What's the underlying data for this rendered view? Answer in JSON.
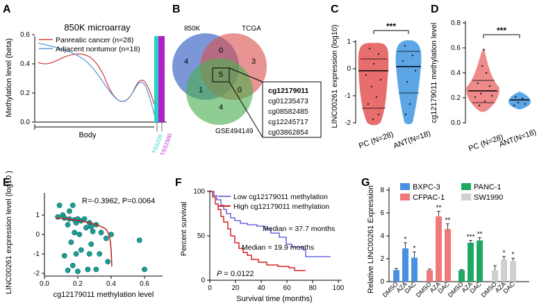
{
  "colors": {
    "red": "#d64545",
    "blue": "#5b9bd5",
    "venn_blue": "#4a6fc7",
    "venn_red": "#d9534f",
    "venn_green": "#4caf50",
    "teal": "#1a9e96",
    "tss200": "#2ad3c0",
    "tss1500": "#b020c8",
    "km_low": "#4a4ad6",
    "km_high": "#d42020",
    "g_bxpc": "#4a90e2",
    "g_cfpac": "#ee7a7a",
    "g_panc": "#1fa864",
    "g_sw": "#d0d0d0"
  },
  "panels": {
    "A": {
      "label": "A",
      "title": "850K microarray",
      "ylabel": "Methylation level (beta)",
      "xlabel": "Body",
      "legend": [
        "Panreatic cancer (n=28)",
        "Adjacent nontumor (n=18)"
      ],
      "yticks": [
        "0.0",
        "0.2",
        "0.4",
        "0.6"
      ],
      "tss200": "TSS200",
      "tss1500": "TSS1500"
    },
    "B": {
      "label": "B",
      "sets": [
        "850K",
        "TCGA",
        "GSE494149"
      ],
      "counts": [
        "4",
        "0",
        "3",
        "1",
        "5",
        "0",
        "4"
      ],
      "genes": [
        "cg12179011",
        "cg01235473",
        "cg08582485",
        "cg12245717",
        "cg03862854"
      ]
    },
    "C": {
      "label": "C",
      "ylabel": "LINC00261 expression (log10)",
      "yticks": [
        "1",
        "0",
        "-1",
        "-2"
      ],
      "groups": [
        "PC (N=28)",
        "ANT(N=18)"
      ],
      "sig": "***"
    },
    "D": {
      "label": "D",
      "ylabel": "cg12179011 methylation level",
      "yticks": [
        "0.8",
        "0.6",
        "0.4",
        "0.2",
        "0.0"
      ],
      "groups": [
        "PC (N=28)",
        "ANT(N=18)"
      ],
      "sig": "***"
    },
    "E": {
      "label": "E",
      "ylabel": "LINC00261 expression level (log10 )",
      "xlabel": "cg12179011 methylation level",
      "stat": "R=-0.3962, P=0.0064",
      "xticks": [
        "0.0",
        "0.2",
        "0.4",
        "0.6"
      ],
      "yticks": [
        "1",
        "0",
        "-1",
        "-2"
      ],
      "points": [
        [
          0.09,
          1.5
        ],
        [
          0.17,
          1.5
        ],
        [
          0.15,
          1.2
        ],
        [
          0.11,
          1.0
        ],
        [
          0.08,
          0.9
        ],
        [
          0.12,
          0.85
        ],
        [
          0.15,
          0.8
        ],
        [
          0.18,
          0.75
        ],
        [
          0.2,
          0.8
        ],
        [
          0.22,
          0.7
        ],
        [
          0.24,
          0.8
        ],
        [
          0.19,
          0.6
        ],
        [
          0.14,
          0.5
        ],
        [
          0.27,
          0.6
        ],
        [
          0.28,
          0.4
        ],
        [
          0.25,
          0.35
        ],
        [
          0.31,
          0.5
        ],
        [
          0.18,
          0.1
        ],
        [
          0.21,
          0.0
        ],
        [
          0.29,
          0.15
        ],
        [
          0.34,
          0.1
        ],
        [
          0.4,
          0.0
        ],
        [
          0.16,
          -0.4
        ],
        [
          0.28,
          -0.5
        ],
        [
          0.37,
          -0.2
        ],
        [
          0.22,
          -0.8
        ],
        [
          0.19,
          -1.0
        ],
        [
          0.12,
          -1.1
        ],
        [
          0.27,
          -1.0
        ],
        [
          0.33,
          -1.0
        ],
        [
          0.38,
          -1.4
        ],
        [
          0.14,
          -1.85
        ],
        [
          0.2,
          -1.9
        ],
        [
          0.26,
          -1.8
        ],
        [
          0.31,
          -1.8
        ],
        [
          0.57,
          -0.3
        ],
        [
          0.6,
          -1.8
        ],
        [
          0.17,
          -1.6
        ]
      ]
    },
    "F": {
      "label": "F",
      "ylabel": "Percent survival",
      "xlabel": "Survival time (months)",
      "legend": [
        "Low cg12179011 methylation",
        "High cg12179011 methylation"
      ],
      "median_low": "Median = 37.7 months",
      "median_high": "Median = 19.9 months",
      "pvalue_p": "P",
      "pvalue_rest": " = 0.0122",
      "xticks": [
        "0",
        "20",
        "40",
        "60",
        "80",
        "100"
      ],
      "yticks": [
        "100",
        "50",
        "0"
      ]
    },
    "G": {
      "label": "G",
      "ylabel": "Relative LINC00261 Expression",
      "legend": [
        "BXPC-3",
        "CFPAC-1",
        "PANC-1",
        "SW1990"
      ],
      "yticks": [
        "0",
        "2",
        "4",
        "6",
        "8"
      ],
      "xlabels": [
        "DMSO",
        "AZA",
        "DAC"
      ],
      "values": [
        [
          1.0,
          2.9,
          2.1
        ],
        [
          1.0,
          5.7,
          4.6
        ],
        [
          1.0,
          3.4,
          3.6
        ],
        [
          1.0,
          1.9,
          1.8
        ]
      ],
      "errors": [
        [
          0.15,
          0.5,
          0.5
        ],
        [
          0.1,
          0.45,
          0.45
        ],
        [
          0.05,
          0.2,
          0.25
        ],
        [
          0.4,
          0.3,
          0.25
        ]
      ],
      "sig": [
        [
          "",
          "*",
          "*"
        ],
        [
          "",
          "**",
          "**"
        ],
        [
          "",
          "***",
          "**"
        ],
        [
          "",
          "*",
          "*"
        ]
      ]
    }
  }
}
